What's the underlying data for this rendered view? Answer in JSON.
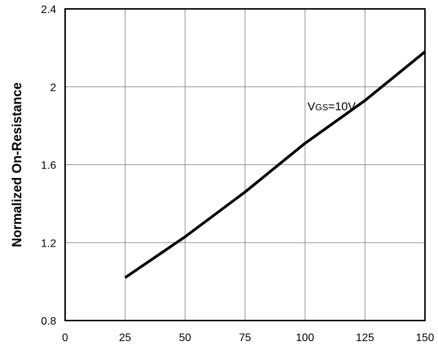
{
  "chart_data": {
    "type": "line",
    "title": "",
    "xlabel": "",
    "ylabel": "Normalized On-Resistance",
    "xlim": [
      0,
      150
    ],
    "ylim": [
      0.8,
      2.4
    ],
    "x_ticks": [
      "0",
      "25",
      "50",
      "75",
      "100",
      "125",
      "150"
    ],
    "y_ticks": [
      "0.8",
      "1.2",
      "1.6",
      "2",
      "2.4"
    ],
    "grid": true,
    "legend": "none",
    "series": [
      {
        "color": "#000000",
        "points": [
          [
            25,
            1.02
          ],
          [
            50,
            1.23
          ],
          [
            75,
            1.46
          ],
          [
            100,
            1.71
          ],
          [
            125,
            1.93
          ],
          [
            150,
            2.18
          ]
        ]
      }
    ],
    "annotations": [
      {
        "main": "V",
        "subscript": "GS",
        "suffix": "=10V",
        "x": 101,
        "y": 1.88
      }
    ]
  }
}
